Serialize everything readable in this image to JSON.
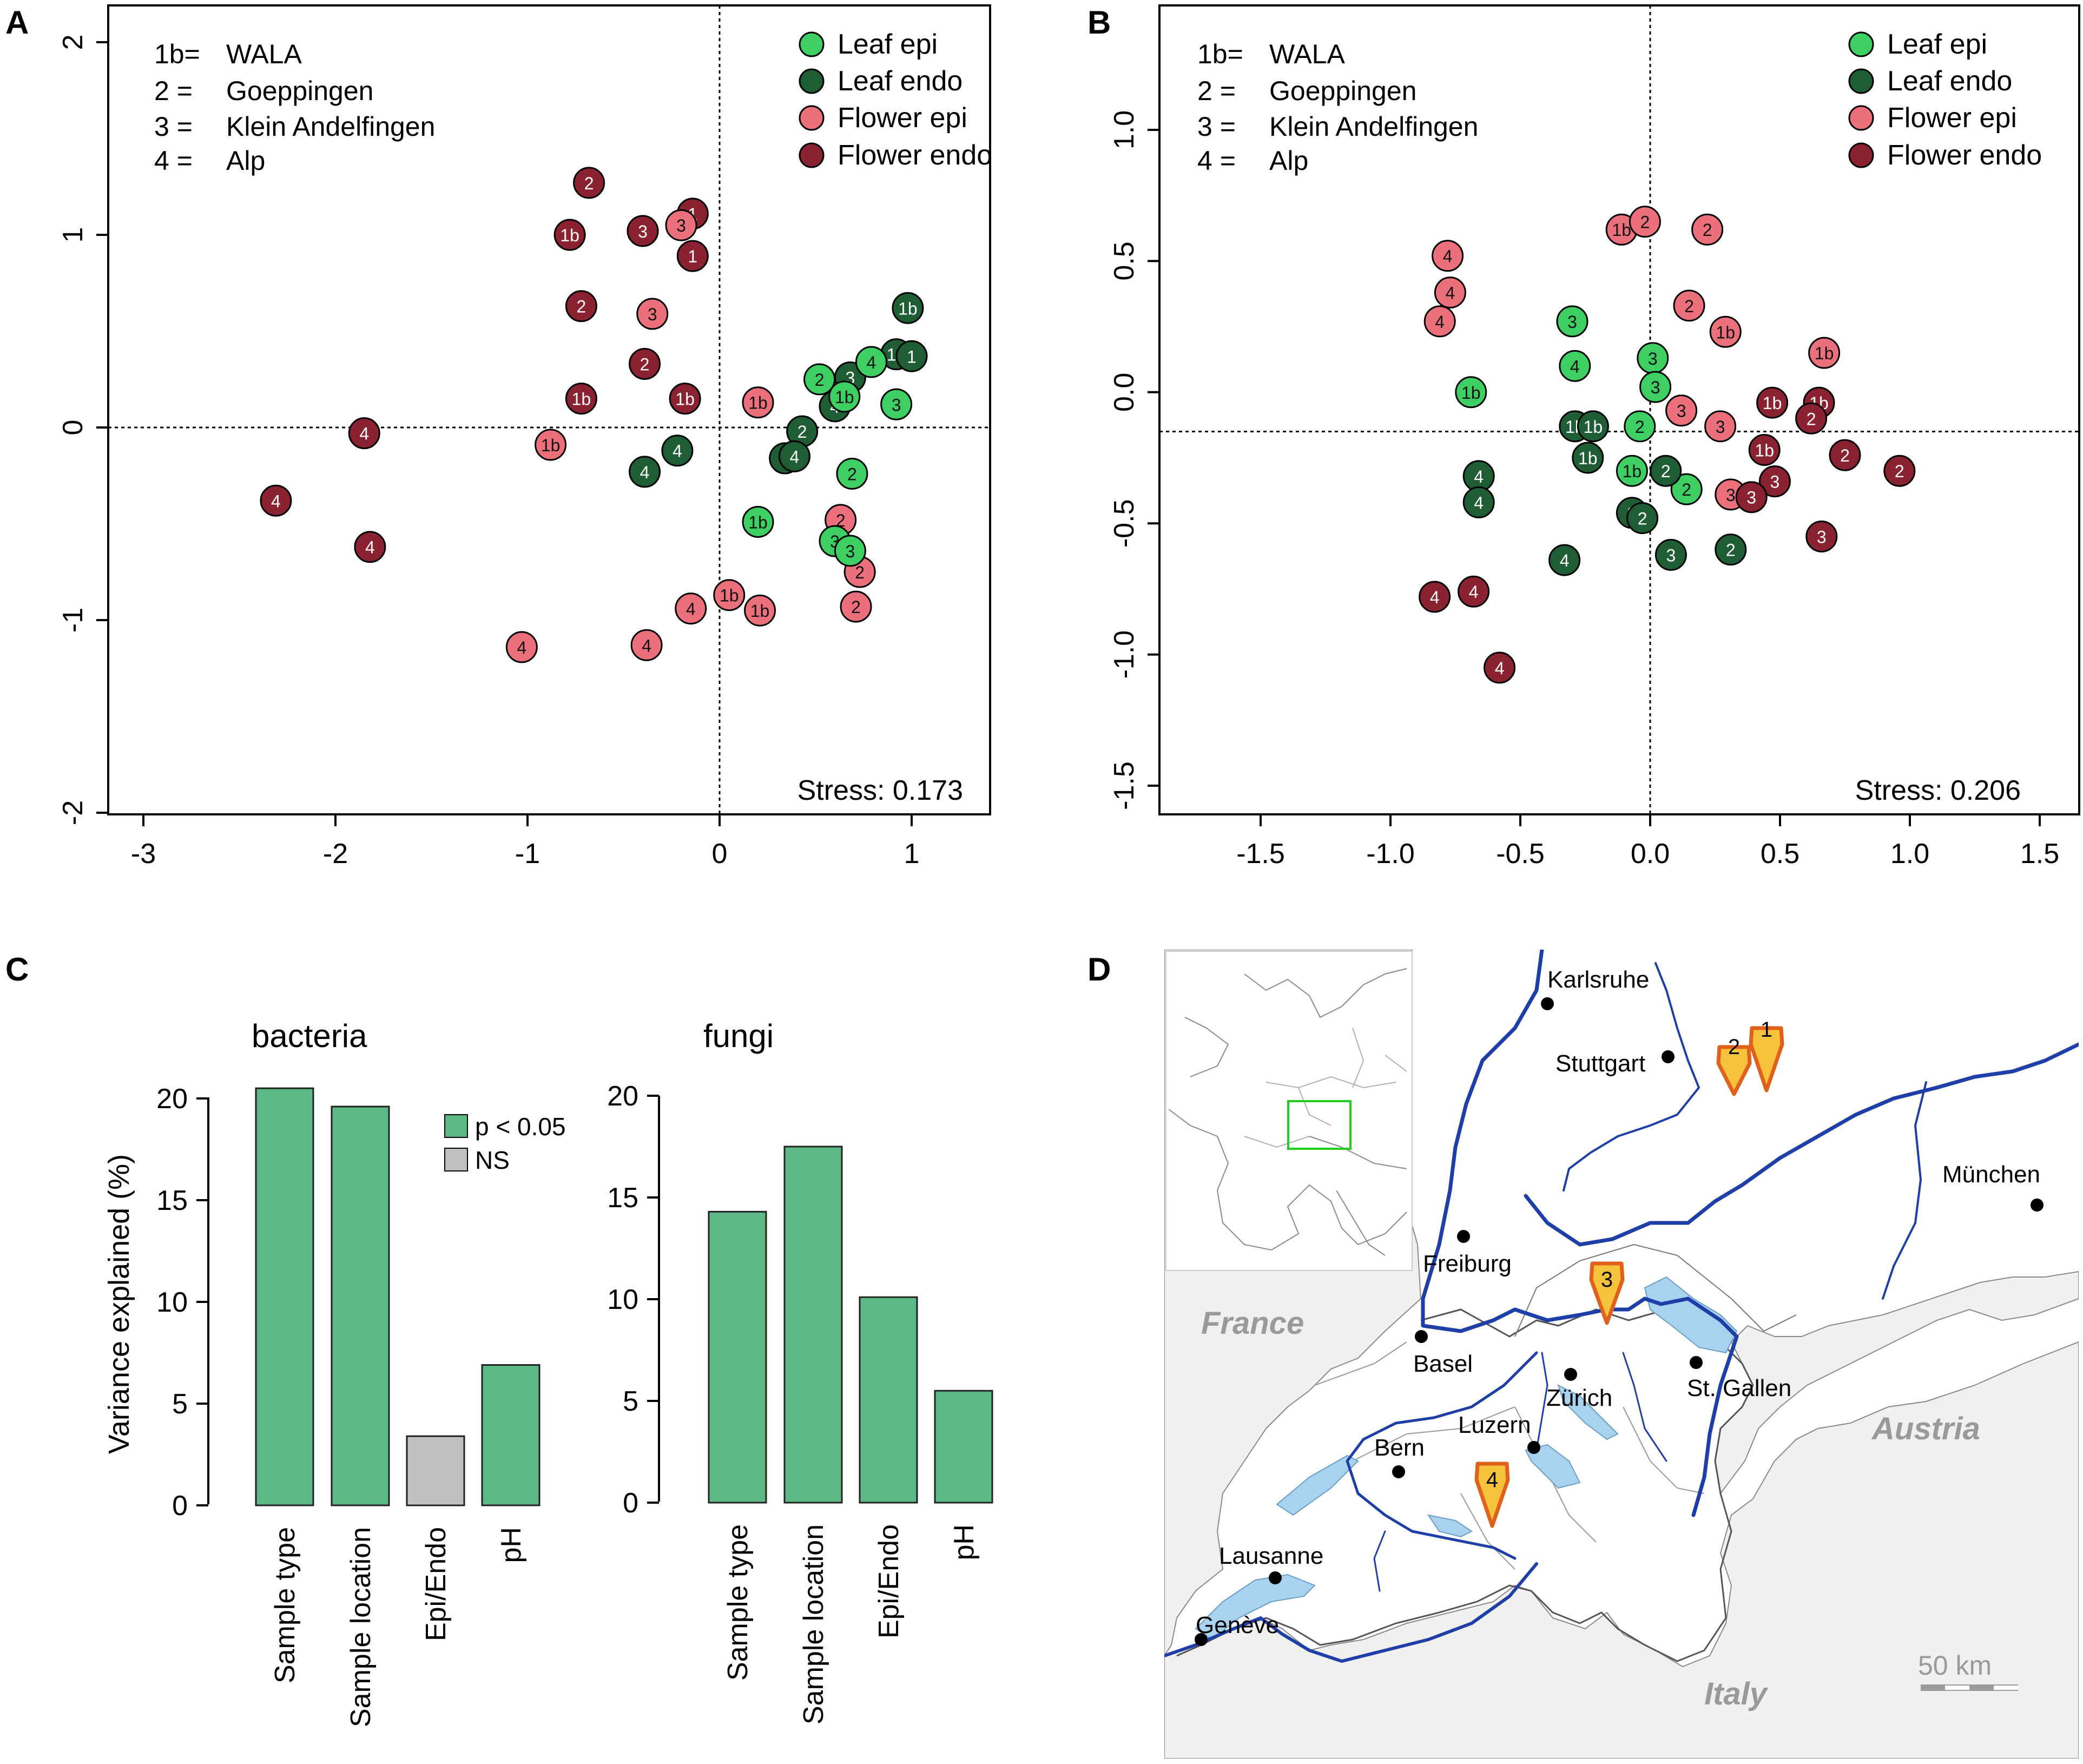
{
  "figure": {
    "panels": [
      "A",
      "B",
      "C",
      "D"
    ],
    "colors": {
      "leaf_epi": "#3ecf63",
      "leaf_endo": "#1f5e34",
      "flower_epi": "#ec6f7c",
      "flower_endo": "#8b2231",
      "bar_sig": "#5cb985",
      "bar_ns": "#c0c0c0",
      "river": "#1f3fa8",
      "lake": "#a9d2ee",
      "outside": "#f0f0f0",
      "marker": "#f6c23b",
      "marker_border": "#e0611b",
      "inset_box": "#22cc22"
    }
  },
  "site_legend": [
    {
      "code": "1b=",
      "name": "WALA"
    },
    {
      "code": "2  =",
      "name": "Goeppingen"
    },
    {
      "code": "3  =",
      "name": "Klein  Andelfingen"
    },
    {
      "code": "4  =",
      "name": "Alp"
    }
  ],
  "group_legend": [
    {
      "key": "leaf_epi",
      "label": "Leaf epi"
    },
    {
      "key": "leaf_endo",
      "label": "Leaf endo"
    },
    {
      "key": "flower_epi",
      "label": "Flower epi"
    },
    {
      "key": "flower_endo",
      "label": "Flower endo"
    }
  ],
  "chart_data": [
    {
      "panel": "A",
      "type": "scatter",
      "title": "",
      "xlabel": "",
      "ylabel": "",
      "xlim": [
        -3.3,
        1.5
      ],
      "ylim": [
        -2.0,
        2.0
      ],
      "xticks": [
        -3,
        -2,
        -1,
        0,
        1
      ],
      "yticks": [
        -2,
        -1,
        0,
        1,
        2
      ],
      "ref_x": 0,
      "ref_y": 0,
      "stress_label": "Stress: 0.173",
      "points": [
        {
          "x": -0.68,
          "y": 1.27,
          "site": "2",
          "g": "flower_endo"
        },
        {
          "x": -0.78,
          "y": 1.0,
          "site": "1b",
          "g": "flower_endo"
        },
        {
          "x": -0.4,
          "y": 1.02,
          "site": "3",
          "g": "flower_endo"
        },
        {
          "x": -0.14,
          "y": 1.11,
          "site": "1",
          "g": "flower_endo"
        },
        {
          "x": -0.14,
          "y": 0.89,
          "site": "1",
          "g": "flower_endo"
        },
        {
          "x": -0.72,
          "y": 0.63,
          "site": "2",
          "g": "flower_endo"
        },
        {
          "x": -0.39,
          "y": 0.33,
          "site": "2",
          "g": "flower_endo"
        },
        {
          "x": -0.72,
          "y": 0.15,
          "site": "1b",
          "g": "flower_endo"
        },
        {
          "x": -0.18,
          "y": 0.15,
          "site": "1b",
          "g": "flower_endo"
        },
        {
          "x": -1.85,
          "y": -0.03,
          "site": "4",
          "g": "flower_endo"
        },
        {
          "x": -2.31,
          "y": -0.38,
          "site": "4",
          "g": "flower_endo"
        },
        {
          "x": -1.82,
          "y": -0.62,
          "site": "4",
          "g": "flower_endo"
        },
        {
          "x": -0.2,
          "y": 1.05,
          "site": "3",
          "g": "flower_epi"
        },
        {
          "x": -0.35,
          "y": 0.59,
          "site": "3",
          "g": "flower_epi"
        },
        {
          "x": 0.2,
          "y": 0.13,
          "site": "1b",
          "g": "flower_epi"
        },
        {
          "x": -0.88,
          "y": -0.09,
          "site": "1b",
          "g": "flower_epi"
        },
        {
          "x": 0.63,
          "y": -0.48,
          "site": "2",
          "g": "flower_epi"
        },
        {
          "x": 0.73,
          "y": -0.75,
          "site": "2",
          "g": "flower_epi"
        },
        {
          "x": 0.71,
          "y": -0.93,
          "site": "2",
          "g": "flower_epi"
        },
        {
          "x": 0.05,
          "y": -0.87,
          "site": "1b",
          "g": "flower_epi"
        },
        {
          "x": 0.21,
          "y": -0.95,
          "site": "1b",
          "g": "flower_epi"
        },
        {
          "x": -0.15,
          "y": -0.94,
          "site": "4",
          "g": "flower_epi"
        },
        {
          "x": -1.03,
          "y": -1.14,
          "site": "4",
          "g": "flower_epi"
        },
        {
          "x": -0.38,
          "y": -1.13,
          "site": "4",
          "g": "flower_epi"
        },
        {
          "x": 0.98,
          "y": 0.62,
          "site": "1b",
          "g": "leaf_endo"
        },
        {
          "x": 0.92,
          "y": 0.38,
          "site": "1b",
          "g": "leaf_endo"
        },
        {
          "x": 1.0,
          "y": 0.37,
          "site": "1",
          "g": "leaf_endo"
        },
        {
          "x": 0.68,
          "y": 0.26,
          "site": "3",
          "g": "leaf_endo"
        },
        {
          "x": 0.6,
          "y": 0.11,
          "site": "4",
          "g": "leaf_endo"
        },
        {
          "x": 0.43,
          "y": -0.02,
          "site": "2",
          "g": "leaf_endo"
        },
        {
          "x": -0.22,
          "y": -0.12,
          "site": "4",
          "g": "leaf_endo"
        },
        {
          "x": 0.34,
          "y": -0.16,
          "site": "2",
          "g": "leaf_endo"
        },
        {
          "x": 0.39,
          "y": -0.15,
          "site": "4",
          "g": "leaf_endo"
        },
        {
          "x": -0.39,
          "y": -0.23,
          "site": "4",
          "g": "leaf_endo"
        },
        {
          "x": 0.79,
          "y": 0.34,
          "site": "4",
          "g": "leaf_epi"
        },
        {
          "x": 0.52,
          "y": 0.25,
          "site": "2",
          "g": "leaf_epi"
        },
        {
          "x": 0.65,
          "y": 0.16,
          "site": "1b",
          "g": "leaf_epi"
        },
        {
          "x": 0.92,
          "y": 0.12,
          "site": "3",
          "g": "leaf_epi"
        },
        {
          "x": 0.69,
          "y": -0.24,
          "site": "2",
          "g": "leaf_epi"
        },
        {
          "x": 0.2,
          "y": -0.49,
          "site": "1b",
          "g": "leaf_epi"
        },
        {
          "x": 0.6,
          "y": -0.59,
          "site": "3",
          "g": "leaf_epi"
        },
        {
          "x": 0.68,
          "y": -0.64,
          "site": "3",
          "g": "leaf_epi"
        }
      ]
    },
    {
      "panel": "B",
      "type": "scatter",
      "title": "",
      "xlabel": "",
      "ylabel": "",
      "xlim": [
        -1.85,
        1.7
      ],
      "ylim": [
        -1.62,
        1.22
      ],
      "xticks": [
        -1.5,
        -1.0,
        -0.5,
        0.0,
        0.5,
        1.0,
        1.5
      ],
      "yticks": [
        -1.5,
        -1.0,
        -0.5,
        0.0,
        0.5,
        1.0
      ],
      "ref_x": 0.0,
      "ref_y": -0.15,
      "stress_label": "Stress: 0.206",
      "points": [
        {
          "x": -0.78,
          "y": 0.52,
          "site": "4",
          "g": "flower_epi"
        },
        {
          "x": -0.77,
          "y": 0.38,
          "site": "4",
          "g": "flower_epi"
        },
        {
          "x": -0.81,
          "y": 0.27,
          "site": "4",
          "g": "flower_epi"
        },
        {
          "x": -0.11,
          "y": 0.62,
          "site": "1b",
          "g": "flower_epi"
        },
        {
          "x": -0.02,
          "y": 0.65,
          "site": "2",
          "g": "flower_epi"
        },
        {
          "x": 0.22,
          "y": 0.62,
          "site": "2",
          "g": "flower_epi"
        },
        {
          "x": 0.15,
          "y": 0.33,
          "site": "2",
          "g": "flower_epi"
        },
        {
          "x": 0.29,
          "y": 0.23,
          "site": "1b",
          "g": "flower_epi"
        },
        {
          "x": 0.67,
          "y": 0.15,
          "site": "1b",
          "g": "flower_epi"
        },
        {
          "x": 0.12,
          "y": -0.07,
          "site": "3",
          "g": "flower_epi"
        },
        {
          "x": 0.27,
          "y": -0.13,
          "site": "3",
          "g": "flower_epi"
        },
        {
          "x": 0.31,
          "y": -0.39,
          "site": "3",
          "g": "flower_epi"
        },
        {
          "x": 0.47,
          "y": -0.04,
          "site": "1b",
          "g": "flower_endo"
        },
        {
          "x": 0.65,
          "y": -0.04,
          "site": "1b",
          "g": "flower_endo"
        },
        {
          "x": 0.62,
          "y": -0.1,
          "site": "2",
          "g": "flower_endo"
        },
        {
          "x": 0.44,
          "y": -0.22,
          "site": "1b",
          "g": "flower_endo"
        },
        {
          "x": 0.75,
          "y": -0.24,
          "site": "2",
          "g": "flower_endo"
        },
        {
          "x": 0.96,
          "y": -0.3,
          "site": "2",
          "g": "flower_endo"
        },
        {
          "x": 0.48,
          "y": -0.34,
          "site": "3",
          "g": "flower_endo"
        },
        {
          "x": 0.39,
          "y": -0.4,
          "site": "3",
          "g": "flower_endo"
        },
        {
          "x": 0.66,
          "y": -0.55,
          "site": "3",
          "g": "flower_endo"
        },
        {
          "x": -0.68,
          "y": -0.76,
          "site": "4",
          "g": "flower_endo"
        },
        {
          "x": -0.83,
          "y": -0.78,
          "site": "4",
          "g": "flower_endo"
        },
        {
          "x": -0.58,
          "y": -1.05,
          "site": "4",
          "g": "flower_endo"
        },
        {
          "x": -0.3,
          "y": 0.27,
          "site": "3",
          "g": "leaf_epi"
        },
        {
          "x": -0.29,
          "y": 0.1,
          "site": "4",
          "g": "leaf_epi"
        },
        {
          "x": 0.01,
          "y": 0.13,
          "site": "3",
          "g": "leaf_epi"
        },
        {
          "x": 0.02,
          "y": 0.02,
          "site": "3",
          "g": "leaf_epi"
        },
        {
          "x": -0.69,
          "y": 0.0,
          "site": "1b",
          "g": "leaf_epi"
        },
        {
          "x": -0.04,
          "y": -0.13,
          "site": "2",
          "g": "leaf_epi"
        },
        {
          "x": -0.07,
          "y": -0.3,
          "site": "1b",
          "g": "leaf_epi"
        },
        {
          "x": 0.14,
          "y": -0.37,
          "site": "2",
          "g": "leaf_epi"
        },
        {
          "x": -0.29,
          "y": -0.13,
          "site": "1b",
          "g": "leaf_endo"
        },
        {
          "x": -0.22,
          "y": -0.13,
          "site": "1b",
          "g": "leaf_endo"
        },
        {
          "x": -0.24,
          "y": -0.25,
          "site": "1b",
          "g": "leaf_endo"
        },
        {
          "x": 0.06,
          "y": -0.3,
          "site": "2",
          "g": "leaf_endo"
        },
        {
          "x": -0.66,
          "y": -0.32,
          "site": "4",
          "g": "leaf_endo"
        },
        {
          "x": -0.66,
          "y": -0.42,
          "site": "4",
          "g": "leaf_endo"
        },
        {
          "x": -0.07,
          "y": -0.46,
          "site": "3",
          "g": "leaf_endo"
        },
        {
          "x": -0.03,
          "y": -0.48,
          "site": "2",
          "g": "leaf_endo"
        },
        {
          "x": 0.08,
          "y": -0.62,
          "site": "3",
          "g": "leaf_endo"
        },
        {
          "x": -0.33,
          "y": -0.64,
          "site": "4",
          "g": "leaf_endo"
        },
        {
          "x": 0.31,
          "y": -0.6,
          "site": "2",
          "g": "leaf_endo"
        }
      ]
    },
    {
      "panel": "C",
      "type": "bar",
      "title": "bacteria",
      "xlabel": "",
      "ylabel": "Variance explained (%)",
      "ylim": [
        0,
        20
      ],
      "yticks": [
        0,
        5,
        10,
        15,
        20
      ],
      "categories": [
        "Sample type",
        "Sample location",
        "Epi/Endo",
        "pH"
      ],
      "values": [
        20.5,
        19.6,
        3.4,
        6.9
      ],
      "significant": [
        true,
        true,
        false,
        true
      ],
      "legend": [
        {
          "label": "p < 0.05",
          "kind": "sig"
        },
        {
          "label": "NS",
          "kind": "ns"
        }
      ]
    },
    {
      "panel": "C",
      "type": "bar",
      "title": "fungi",
      "xlabel": "",
      "ylabel": "",
      "ylim": [
        0,
        20
      ],
      "yticks": [
        0,
        5,
        10,
        15,
        20
      ],
      "categories": [
        "Sample type",
        "Sample location",
        "Epi/Endo",
        "pH"
      ],
      "values": [
        14.3,
        17.5,
        10.1,
        5.5
      ],
      "significant": [
        true,
        true,
        true,
        true
      ]
    }
  ],
  "map": {
    "countries": {
      "france": "France",
      "austria": "Austria",
      "italy": "Italy"
    },
    "cities": {
      "karlsruhe": "Karlsruhe",
      "stuttgart": "Stuttgart",
      "muenchen": "München",
      "freiburg": "Freiburg",
      "basel": "Basel",
      "zuerich": "Zürich",
      "st_gallen": "St. Gallen",
      "luzern": "Luzern",
      "bern": "Bern",
      "lausanne": "Lausanne",
      "geneve": "Genève"
    },
    "sites": {
      "s1": "1",
      "s2": "2",
      "s3": "3",
      "s4": "4"
    },
    "scale_label": "50  km"
  }
}
